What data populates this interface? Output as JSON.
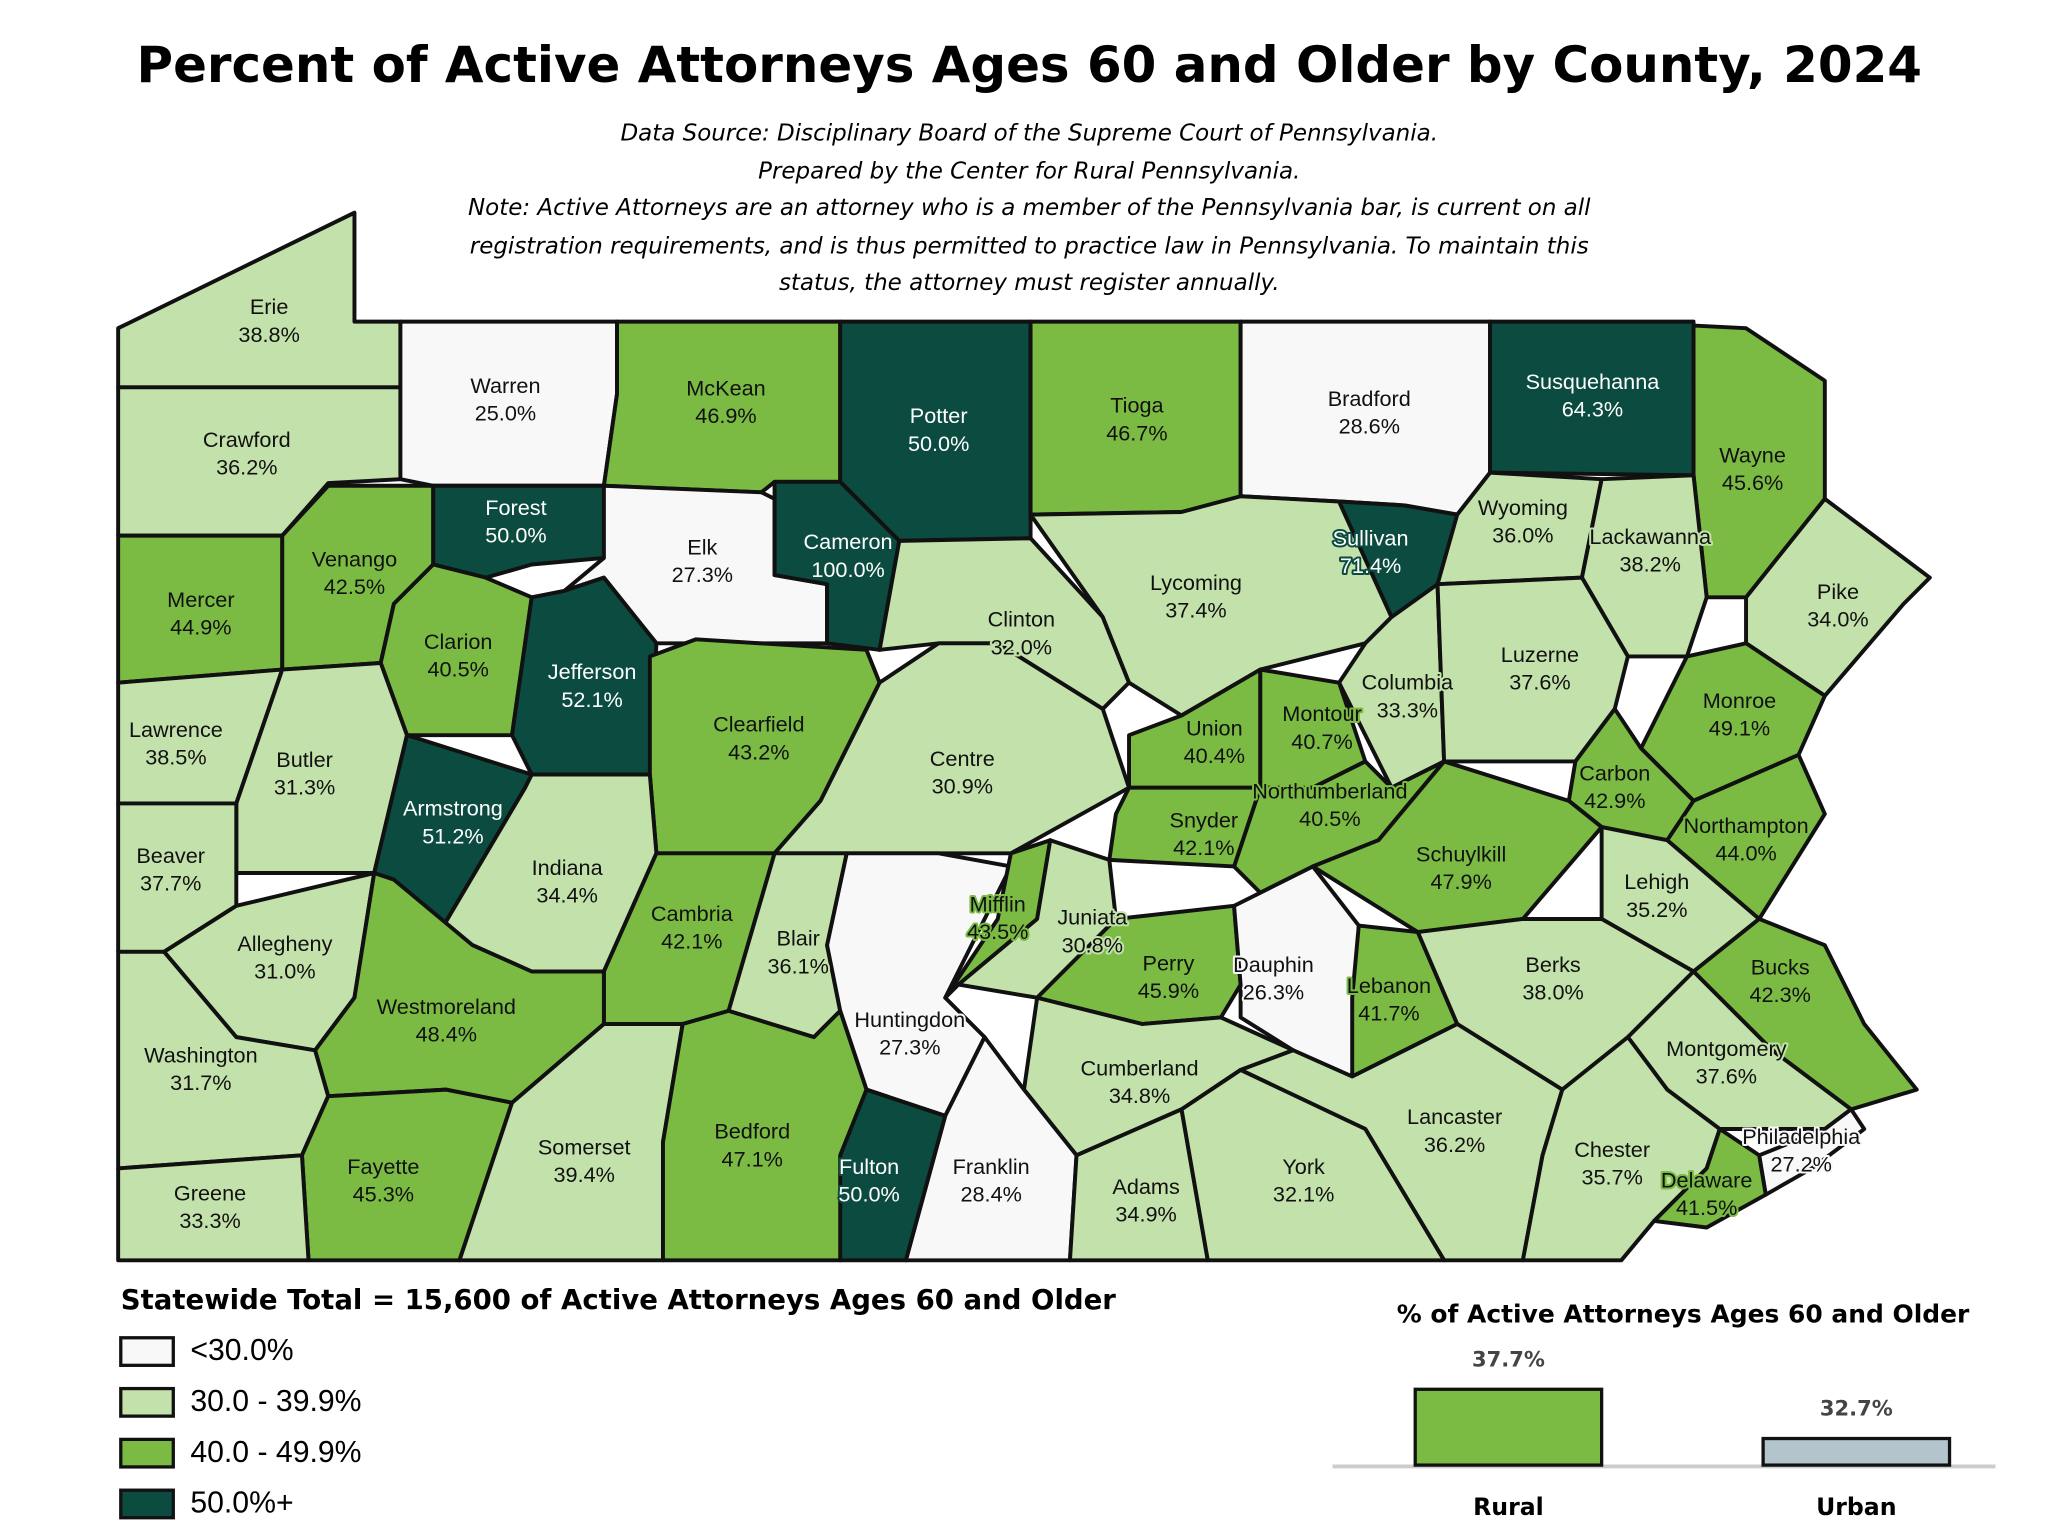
{
  "header": {
    "title": "Percent of Active Attorneys Ages 60 and Older by County, 2024",
    "source": "Data Source: Disciplinary Board of the Supreme Court of Pennsylvania.",
    "prepared": "Prepared by the Center for Rural Pennsylvania.",
    "note": [
      "Note: Active Attorneys are an attorney who is a member of the Pennsylvania bar, is current on all",
      "registration requirements, and is thus permitted to practice law in Pennsylvania. To maintain this",
      "status, the attorney must register annually."
    ]
  },
  "legend": {
    "title": "Statewide Total = 15,600 of Active Attorneys Ages 60 and Older",
    "items": [
      {
        "label": "<30.0%",
        "color": "#f8f8f8"
      },
      {
        "label": "30.0 - 39.9%",
        "color": "#c3e1aa"
      },
      {
        "label": "40.0 - 49.9%",
        "color": "#7bbb43"
      },
      {
        "label": "50.0%+",
        "color": "#0b4b40"
      }
    ]
  },
  "counties": [
    {
      "name": "Erie",
      "value": "38.8%",
      "color": "#c3e1aa"
    },
    {
      "name": "Crawford",
      "value": "36.2%",
      "color": "#c3e1aa"
    },
    {
      "name": "Warren",
      "value": "25.0%",
      "color": "#f8f8f8"
    },
    {
      "name": "McKean",
      "value": "46.9%",
      "color": "#7bbb43"
    },
    {
      "name": "Potter",
      "value": "50.0%",
      "color": "#0b4b40"
    },
    {
      "name": "Tioga",
      "value": "46.7%",
      "color": "#7bbb43"
    },
    {
      "name": "Bradford",
      "value": "28.6%",
      "color": "#f8f8f8"
    },
    {
      "name": "Susquehanna",
      "value": "64.3%",
      "color": "#0b4b40"
    },
    {
      "name": "Wayne",
      "value": "45.6%",
      "color": "#7bbb43"
    },
    {
      "name": "Mercer",
      "value": "44.9%",
      "color": "#7bbb43"
    },
    {
      "name": "Venango",
      "value": "42.5%",
      "color": "#7bbb43"
    },
    {
      "name": "Forest",
      "value": "50.0%",
      "color": "#0b4b40"
    },
    {
      "name": "Elk",
      "value": "27.3%",
      "color": "#f8f8f8"
    },
    {
      "name": "Cameron",
      "value": "100.0%",
      "color": "#0b4b40"
    },
    {
      "name": "Clarion",
      "value": "40.5%",
      "color": "#7bbb43"
    },
    {
      "name": "Jefferson",
      "value": "52.1%",
      "color": "#0b4b40"
    },
    {
      "name": "Clinton",
      "value": "32.0%",
      "color": "#c3e1aa"
    },
    {
      "name": "Lycoming",
      "value": "37.4%",
      "color": "#c3e1aa"
    },
    {
      "name": "Sullivan",
      "value": "71.4%",
      "color": "#0b4b40"
    },
    {
      "name": "Wyoming",
      "value": "36.0%",
      "color": "#c3e1aa"
    },
    {
      "name": "Lackawanna",
      "value": "38.2%",
      "color": "#c3e1aa"
    },
    {
      "name": "Pike",
      "value": "34.0%",
      "color": "#c3e1aa"
    },
    {
      "name": "Lawrence",
      "value": "38.5%",
      "color": "#c3e1aa"
    },
    {
      "name": "Butler",
      "value": "31.3%",
      "color": "#c3e1aa"
    },
    {
      "name": "Clearfield",
      "value": "43.2%",
      "color": "#7bbb43"
    },
    {
      "name": "Centre",
      "value": "30.9%",
      "color": "#c3e1aa"
    },
    {
      "name": "Columbia",
      "value": "33.3%",
      "color": "#c3e1aa"
    },
    {
      "name": "Luzerne",
      "value": "37.6%",
      "color": "#c3e1aa"
    },
    {
      "name": "Union",
      "value": "40.4%",
      "color": "#7bbb43"
    },
    {
      "name": "Montour",
      "value": "40.7%",
      "color": "#7bbb43"
    },
    {
      "name": "Monroe",
      "value": "49.1%",
      "color": "#7bbb43"
    },
    {
      "name": "Beaver",
      "value": "37.7%",
      "color": "#c3e1aa"
    },
    {
      "name": "Armstrong",
      "value": "51.2%",
      "color": "#0b4b40"
    },
    {
      "name": "Indiana",
      "value": "34.4%",
      "color": "#c3e1aa"
    },
    {
      "name": "Northumberland",
      "value": "40.5%",
      "color": "#7bbb43"
    },
    {
      "name": "Snyder",
      "value": "42.1%",
      "color": "#7bbb43"
    },
    {
      "name": "Carbon",
      "value": "42.9%",
      "color": "#7bbb43"
    },
    {
      "name": "Schuylkill",
      "value": "47.9%",
      "color": "#7bbb43"
    },
    {
      "name": "Northampton",
      "value": "44.0%",
      "color": "#7bbb43"
    },
    {
      "name": "Allegheny",
      "value": "31.0%",
      "color": "#c3e1aa"
    },
    {
      "name": "Cambria",
      "value": "42.1%",
      "color": "#7bbb43"
    },
    {
      "name": "Blair",
      "value": "36.1%",
      "color": "#c3e1aa"
    },
    {
      "name": "Huntingdon",
      "value": "27.3%",
      "color": "#f8f8f8"
    },
    {
      "name": "Mifflin",
      "value": "43.5%",
      "color": "#7bbb43"
    },
    {
      "name": "Juniata",
      "value": "30.8%",
      "color": "#c3e1aa"
    },
    {
      "name": "Lehigh",
      "value": "35.2%",
      "color": "#c3e1aa"
    },
    {
      "name": "Westmoreland",
      "value": "48.4%",
      "color": "#7bbb43"
    },
    {
      "name": "Perry",
      "value": "45.9%",
      "color": "#7bbb43"
    },
    {
      "name": "Dauphin",
      "value": "26.3%",
      "color": "#f8f8f8"
    },
    {
      "name": "Lebanon",
      "value": "41.7%",
      "color": "#7bbb43"
    },
    {
      "name": "Berks",
      "value": "38.0%",
      "color": "#c3e1aa"
    },
    {
      "name": "Bucks",
      "value": "42.3%",
      "color": "#7bbb43"
    },
    {
      "name": "Washington",
      "value": "31.7%",
      "color": "#c3e1aa"
    },
    {
      "name": "Montgomery",
      "value": "37.6%",
      "color": "#c3e1aa"
    },
    {
      "name": "Cumberland",
      "value": "34.8%",
      "color": "#c3e1aa"
    },
    {
      "name": "Lancaster",
      "value": "36.2%",
      "color": "#c3e1aa"
    },
    {
      "name": "Philadelphia",
      "value": "27.2%",
      "color": "#f8f8f8"
    },
    {
      "name": "Fayette",
      "value": "45.3%",
      "color": "#7bbb43"
    },
    {
      "name": "Somerset",
      "value": "39.4%",
      "color": "#c3e1aa"
    },
    {
      "name": "Bedford",
      "value": "47.1%",
      "color": "#7bbb43"
    },
    {
      "name": "Chester",
      "value": "35.7%",
      "color": "#c3e1aa"
    },
    {
      "name": "Greene",
      "value": "33.3%",
      "color": "#c3e1aa"
    },
    {
      "name": "Franklin",
      "value": "28.4%",
      "color": "#f8f8f8"
    },
    {
      "name": "Fulton",
      "value": "50.0%",
      "color": "#0b4b40"
    },
    {
      "name": "Adams",
      "value": "34.9%",
      "color": "#c3e1aa"
    },
    {
      "name": "York",
      "value": "32.1%",
      "color": "#c3e1aa"
    },
    {
      "name": "Delaware",
      "value": "41.5%",
      "color": "#7bbb43"
    }
  ],
  "inset_chart": {
    "type": "bar",
    "title": "% of Active Attorneys Ages 60 and Older",
    "categories": [
      "Rural",
      "Urban"
    ],
    "values": [
      37.7,
      32.7
    ],
    "value_labels": [
      "37.7%",
      "32.7%"
    ],
    "colors": [
      "#7bbb43",
      "#b4c4cc"
    ],
    "ylim": [
      30,
      40
    ]
  }
}
